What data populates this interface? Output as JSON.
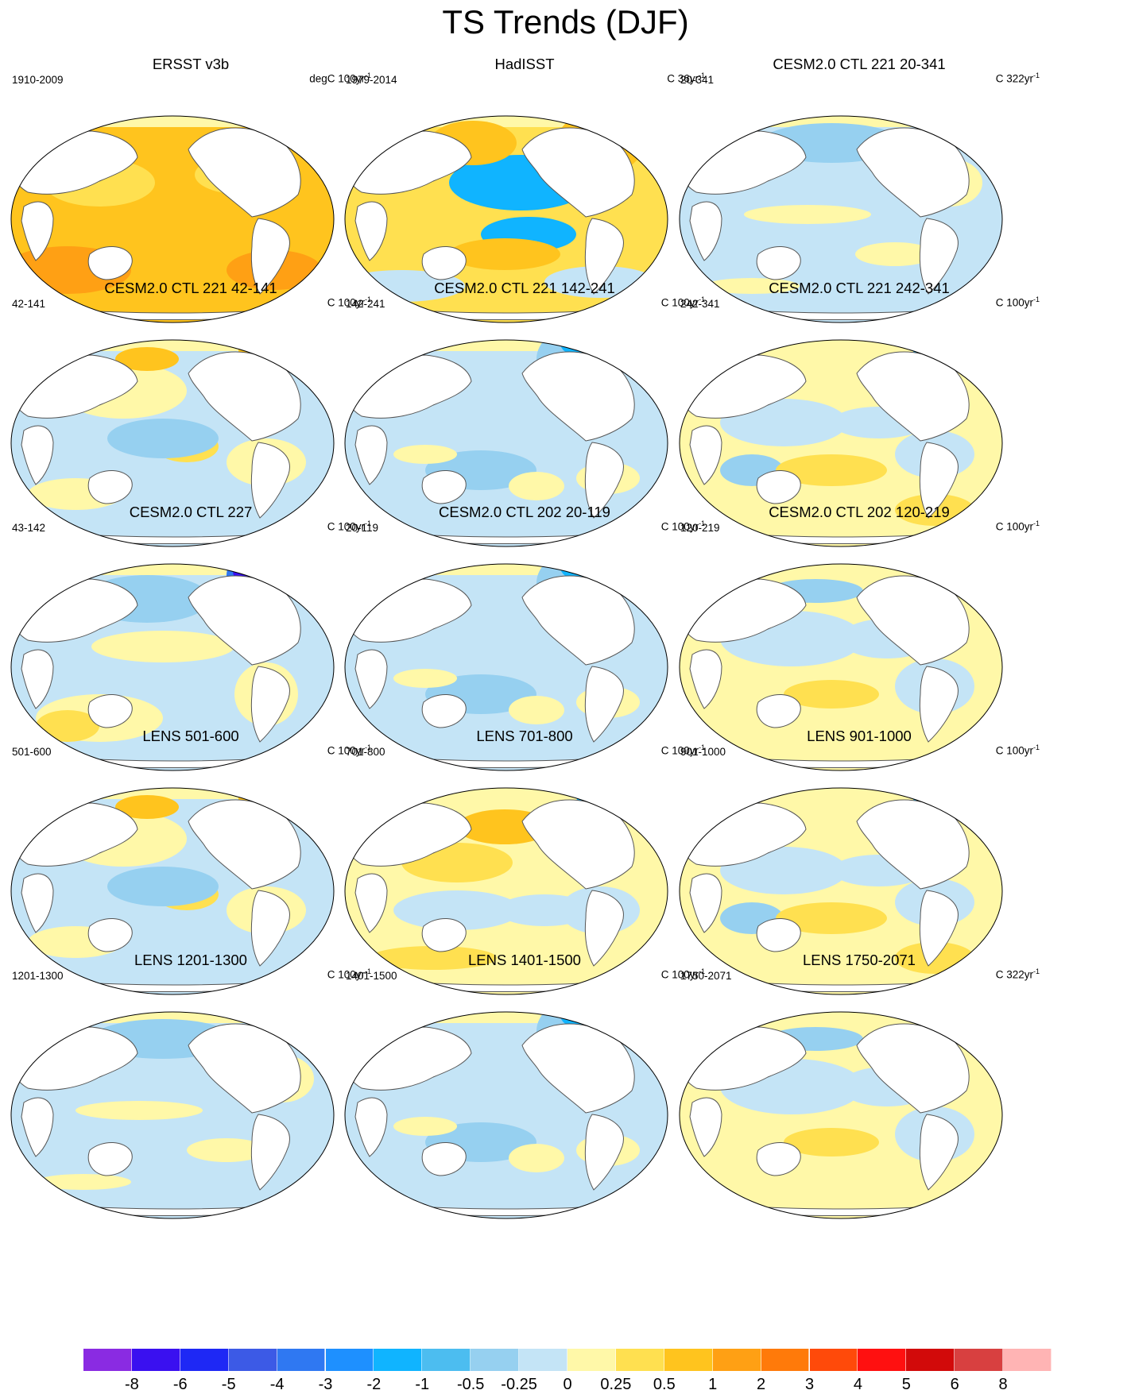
{
  "title": "TS Trends (DJF)",
  "panels": [
    {
      "title": "ERSST v3b",
      "period": "1910-2009",
      "units": "degC 100yr",
      "units_exp": "-1",
      "pattern": "warm"
    },
    {
      "title": "HadISST",
      "period": "1979-2014",
      "units": "C 36yr",
      "units_exp": "-1",
      "pattern": "lanina"
    },
    {
      "title": "CESM2.0 CTL 221 20-341",
      "period": "20-341",
      "units": "C 322yr",
      "units_exp": "-1",
      "pattern": "cool"
    },
    {
      "title": "CESM2.0 CTL 221 42-141",
      "period": "42-141",
      "units": "C 100yr",
      "units_exp": "-1",
      "pattern": "mixed1"
    },
    {
      "title": "CESM2.0 CTL 221 142-241",
      "period": "142-241",
      "units": "C 100yr",
      "units_exp": "-1",
      "pattern": "cool2"
    },
    {
      "title": "CESM2.0 CTL 221 242-341",
      "period": "242-341",
      "units": "C 100yr",
      "units_exp": "-1",
      "pattern": "mixed2"
    },
    {
      "title": "CESM2.0 CTL 227",
      "period": "43-142",
      "units": "C 100yr",
      "units_exp": "-1",
      "pattern": "natl"
    },
    {
      "title": "CESM2.0 CTL 202 20-119",
      "period": "20-119",
      "units": "C 100yr",
      "units_exp": "-1",
      "pattern": "cool2"
    },
    {
      "title": "CESM2.0 CTL 202 120-219",
      "period": "120-219",
      "units": "C 100yr",
      "units_exp": "-1",
      "pattern": "mixed3"
    },
    {
      "title": "LENS 501-600",
      "period": "501-600",
      "units": "C 100yr",
      "units_exp": "-1",
      "pattern": "mixed1"
    },
    {
      "title": "LENS 701-800",
      "period": "701-800",
      "units": "C 100yr",
      "units_exp": "-1",
      "pattern": "npac"
    },
    {
      "title": "LENS 901-1000",
      "period": "901-1000",
      "units": "C 100yr",
      "units_exp": "-1",
      "pattern": "mixed2"
    },
    {
      "title": "LENS 1201-1300",
      "period": "1201-1300",
      "units": "C 100yr",
      "units_exp": "-1",
      "pattern": "cool"
    },
    {
      "title": "LENS 1401-1500",
      "period": "1401-1500",
      "units": "C 100yr",
      "units_exp": "-1",
      "pattern": "cool2"
    },
    {
      "title": "LENS 1750-2071",
      "period": "1750-2071",
      "units": "C 322yr",
      "units_exp": "-1",
      "pattern": "mixed3"
    }
  ],
  "colorbar": {
    "labels": [
      "-8",
      "-6",
      "-5",
      "-4",
      "-3",
      "-2",
      "-1",
      "-0.5",
      "-0.25",
      "0",
      "0.25",
      "0.5",
      "1",
      "2",
      "3",
      "4",
      "5",
      "6",
      "8"
    ],
    "colors": [
      "#8a2be2",
      "#3a10f0",
      "#1e28f5",
      "#3c5ae6",
      "#2f78f2",
      "#1e90ff",
      "#10b4ff",
      "#4cbdf0",
      "#96d0f0",
      "#c4e4f6",
      "#fff8a8",
      "#ffe050",
      "#ffc41e",
      "#ffa014",
      "#ff7a0a",
      "#ff4a0a",
      "#ff1010",
      "#d20a0a",
      "#d84040",
      "#ffb4b4"
    ]
  },
  "chart_data": {
    "type": "heatmap",
    "title": "TS Trends (DJF)",
    "variable": "surface temperature trend",
    "season": "DJF",
    "projection": "Robinson (Pacific-centered)",
    "contour_levels": [
      -8,
      -6,
      -5,
      -4,
      -3,
      -2,
      -1,
      -0.5,
      -0.25,
      0,
      0.25,
      0.5,
      1,
      2,
      3,
      4,
      5,
      6,
      8
    ],
    "panels": [
      {
        "name": "ERSST v3b",
        "period": "1910-2009",
        "units": "degC 100yr-1"
      },
      {
        "name": "HadISST",
        "period": "1979-2014",
        "units": "C 36yr-1"
      },
      {
        "name": "CESM2.0 CTL 221 20-341",
        "period": "20-341",
        "units": "C 322yr-1"
      },
      {
        "name": "CESM2.0 CTL 221 42-141",
        "period": "42-141",
        "units": "C 100yr-1"
      },
      {
        "name": "CESM2.0 CTL 221 142-241",
        "period": "142-241",
        "units": "C 100yr-1"
      },
      {
        "name": "CESM2.0 CTL 221 242-341",
        "period": "242-341",
        "units": "C 100yr-1"
      },
      {
        "name": "CESM2.0 CTL 227",
        "period": "43-142",
        "units": "C 100yr-1"
      },
      {
        "name": "CESM2.0 CTL 202 20-119",
        "period": "20-119",
        "units": "C 100yr-1"
      },
      {
        "name": "CESM2.0 CTL 202 120-219",
        "period": "120-219",
        "units": "C 100yr-1"
      },
      {
        "name": "LENS 501-600",
        "period": "501-600",
        "units": "C 100yr-1"
      },
      {
        "name": "LENS 701-800",
        "period": "701-800",
        "units": "C 100yr-1"
      },
      {
        "name": "LENS 901-1000",
        "period": "901-1000",
        "units": "C 100yr-1"
      },
      {
        "name": "LENS 1201-1300",
        "period": "1201-1300",
        "units": "C 100yr-1"
      },
      {
        "name": "LENS 1401-1500",
        "period": "1401-1500",
        "units": "C 100yr-1"
      },
      {
        "name": "LENS 1750-2071",
        "period": "1750-2071",
        "units": "C 322yr-1"
      }
    ]
  }
}
